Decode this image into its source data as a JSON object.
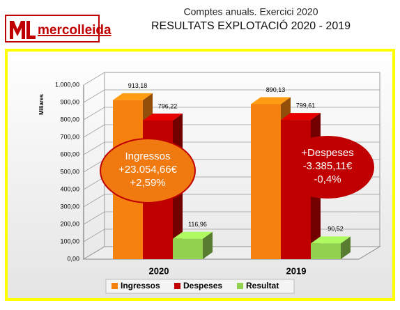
{
  "logo": "mercolleida",
  "chart_data": {
    "type": "bar3d",
    "title": "Comptes anuals. Exercici 2020",
    "subtitle": "RESULTATS EXPLOTACIÓ 2020 - 2019",
    "y_label": "Miliares",
    "categories": [
      "2020",
      "2019"
    ],
    "series": [
      {
        "name": "Ingressos",
        "color": "#f5820f",
        "values": [
          913.18,
          890.13
        ],
        "value_labels": [
          "913,18",
          "890,13"
        ]
      },
      {
        "name": "Despeses",
        "color": "#c00000",
        "values": [
          796.22,
          799.61
        ],
        "value_labels": [
          "796,22",
          "799,61"
        ]
      },
      {
        "name": "Resultat",
        "color": "#92d050",
        "values": [
          116.96,
          90.52
        ],
        "value_labels": [
          "116,96",
          "90,52"
        ]
      }
    ],
    "ylim": [
      0,
      1000
    ],
    "yticks": [
      {
        "value": 0,
        "label": "0,00"
      },
      {
        "value": 100,
        "label": "100,00"
      },
      {
        "value": 200,
        "label": "200,00"
      },
      {
        "value": 300,
        "label": "300,00"
      },
      {
        "value": 400,
        "label": "400,00"
      },
      {
        "value": 500,
        "label": "500,00"
      },
      {
        "value": 600,
        "label": "600,00"
      },
      {
        "value": 700,
        "label": "700,00"
      },
      {
        "value": 800,
        "label": "800,00"
      },
      {
        "value": 900,
        "label": "900,00"
      },
      {
        "value": 1000,
        "label": "1.000,00"
      }
    ],
    "grid": true,
    "legend": "bottom",
    "annotations": [
      {
        "lines": [
          "Ingressos",
          "+23.054,66€",
          "+2,59%"
        ],
        "color": "#f07a10"
      },
      {
        "lines": [
          "+Despeses",
          "-3.385,11€",
          "-0,4%"
        ],
        "color": "#c00000"
      }
    ]
  }
}
